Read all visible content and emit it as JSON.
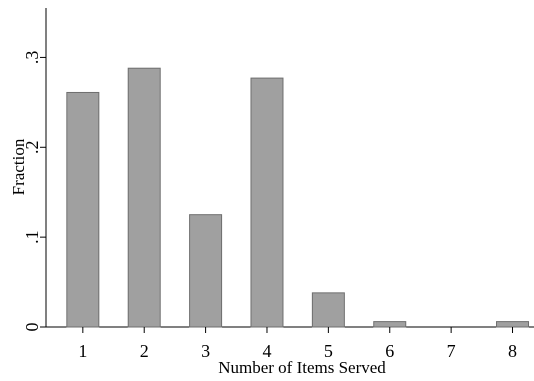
{
  "chart_data": {
    "type": "bar",
    "categories": [
      "1",
      "2",
      "3",
      "4",
      "5",
      "6",
      "7",
      "8"
    ],
    "values": [
      0.261,
      0.288,
      0.125,
      0.277,
      0.038,
      0.006,
      0.0,
      0.006
    ],
    "xlabel": "Number of Items Served",
    "ylabel": "Fraction",
    "yticks": [
      {
        "value": 0,
        "label": "0"
      },
      {
        "value": 0.1,
        "label": ".1"
      },
      {
        "value": 0.2,
        "label": ".2"
      },
      {
        "value": 0.3,
        "label": ".3"
      }
    ],
    "ylim": [
      0,
      0.355
    ],
    "xlim": [
      0.4,
      8.35
    ],
    "grid": false,
    "bar_color": "#a0a0a0",
    "bar_stroke": "#6e6e6e"
  }
}
